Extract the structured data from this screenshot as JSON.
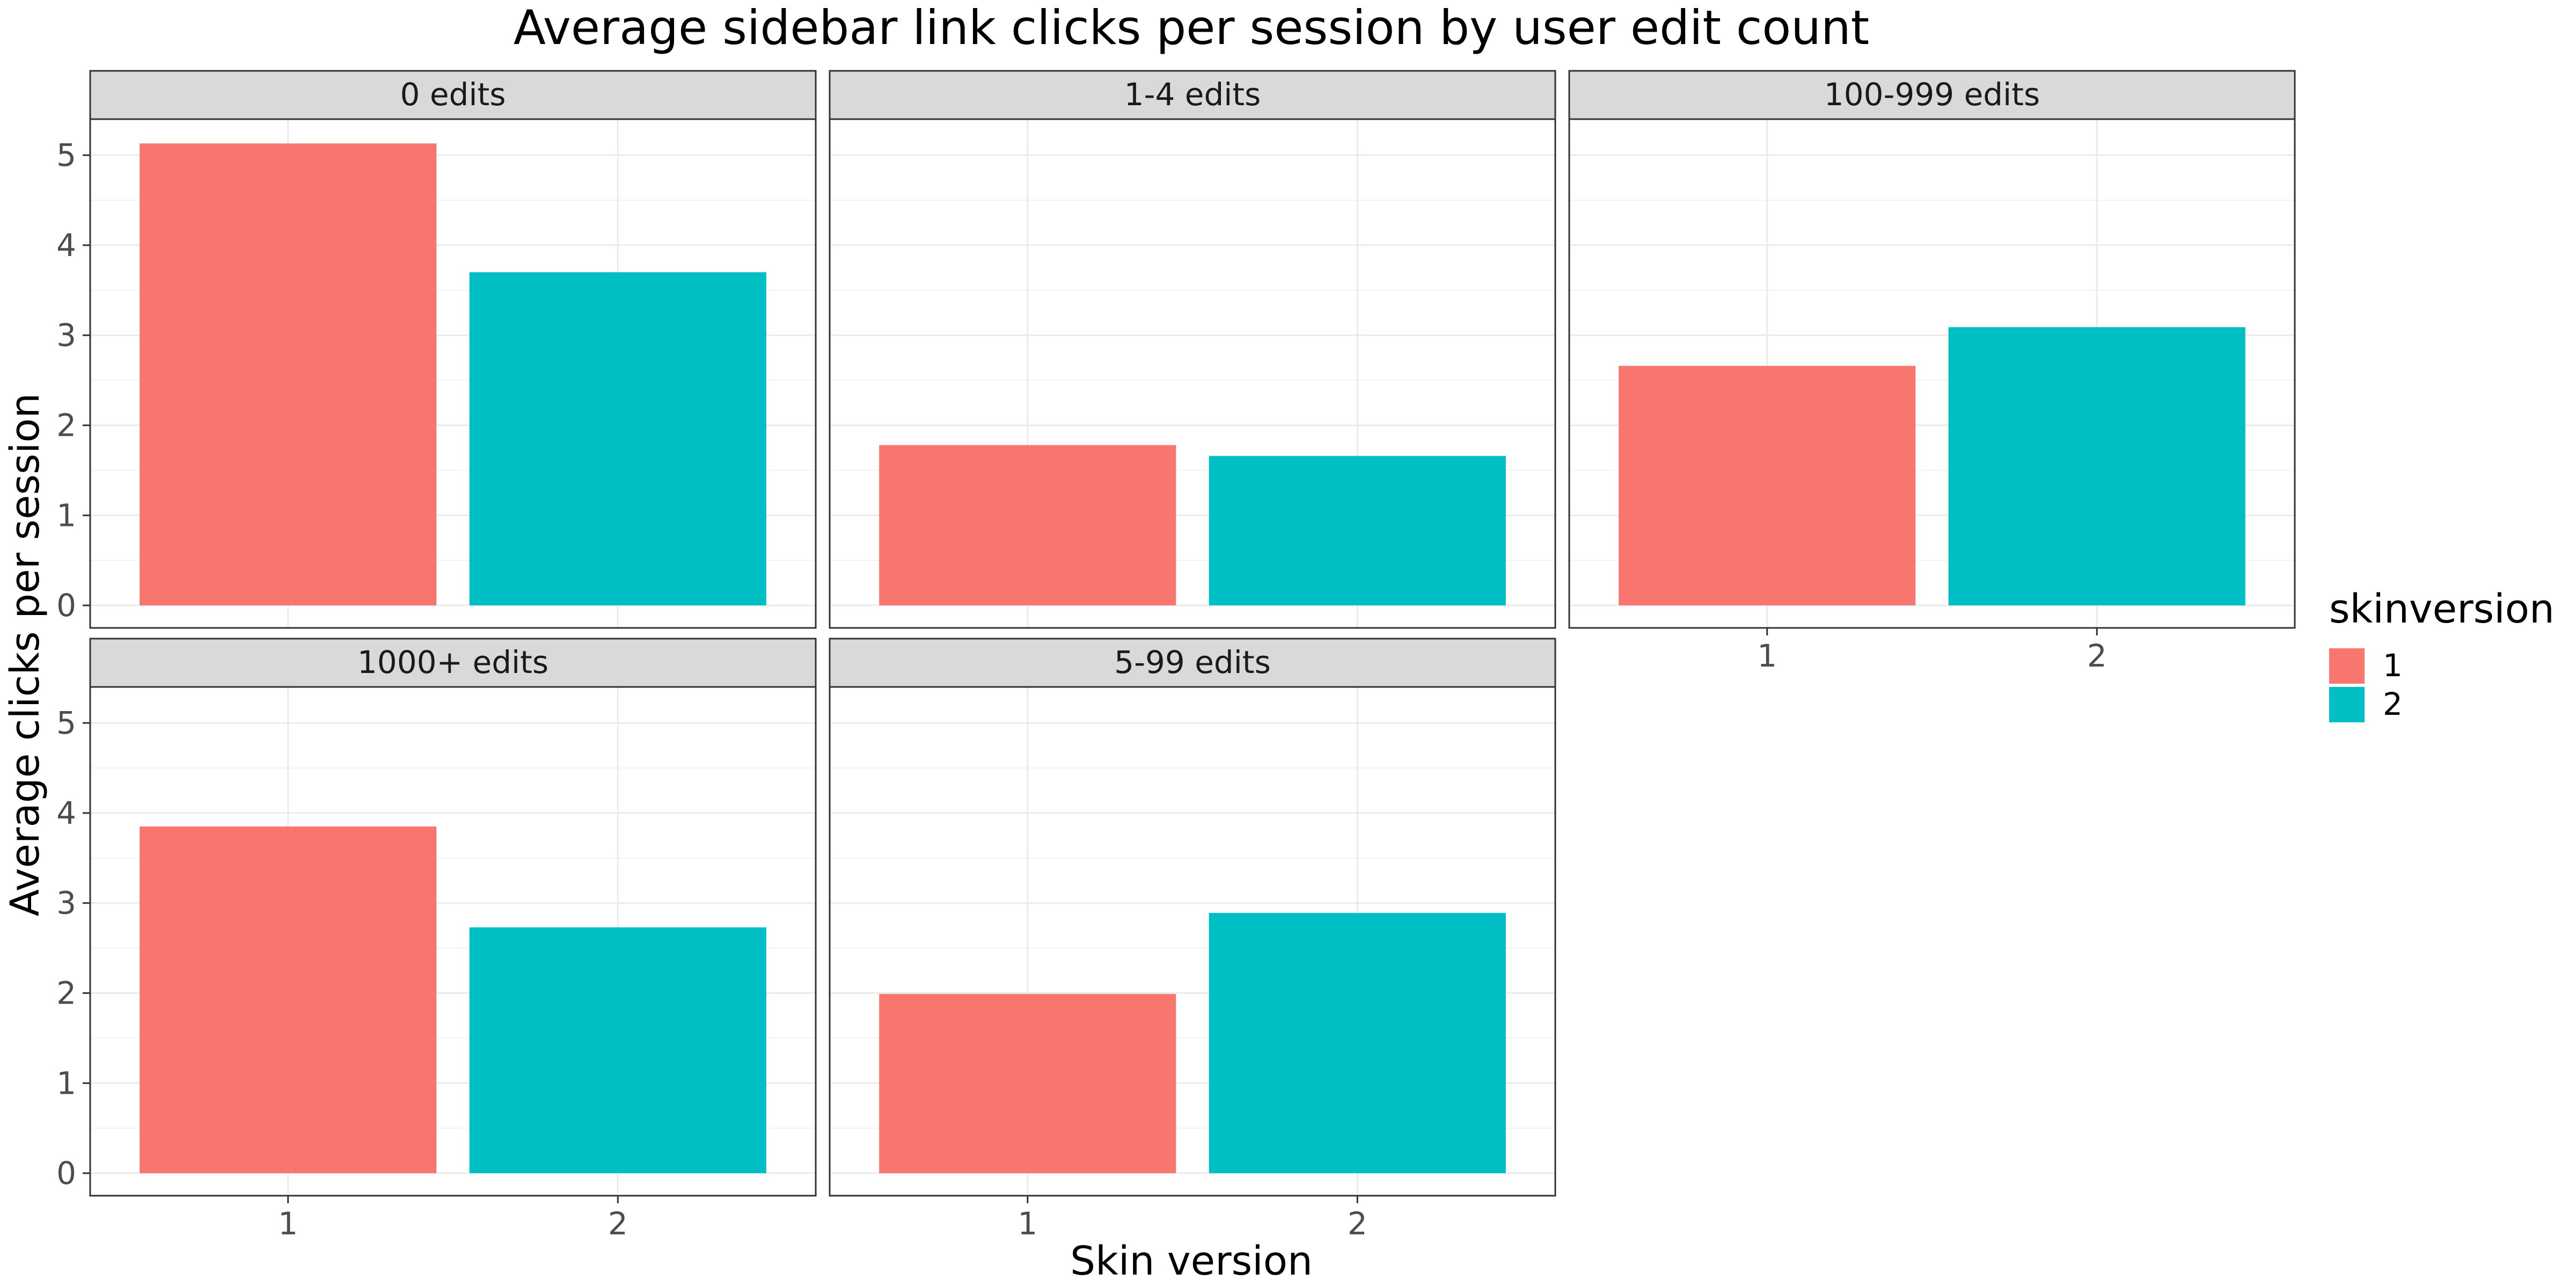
{
  "chart_data": {
    "type": "bar",
    "title": "Average sidebar link clicks per session by user edit count",
    "xlabel": "Skin version",
    "ylabel": "Average clicks per session",
    "categories": [
      "1",
      "2"
    ],
    "ylim": [
      -0.25,
      5.4
    ],
    "yticks": [
      0,
      1,
      2,
      3,
      4,
      5
    ],
    "grid": true,
    "facets": [
      {
        "label": "0 edits",
        "values": [
          5.13,
          3.7
        ]
      },
      {
        "label": "1-4 edits",
        "values": [
          1.78,
          1.66
        ]
      },
      {
        "label": "100-999 edits",
        "values": [
          2.66,
          3.09
        ]
      },
      {
        "label": "1000+ edits",
        "values": [
          3.85,
          2.73
        ]
      },
      {
        "label": "5-99 edits",
        "values": [
          1.99,
          2.89
        ]
      }
    ],
    "legend": {
      "title": "skinversion",
      "placement": "right",
      "items": [
        {
          "label": "1",
          "color": "#F8766D"
        },
        {
          "label": "2",
          "color": "#00BFC4"
        }
      ]
    }
  }
}
